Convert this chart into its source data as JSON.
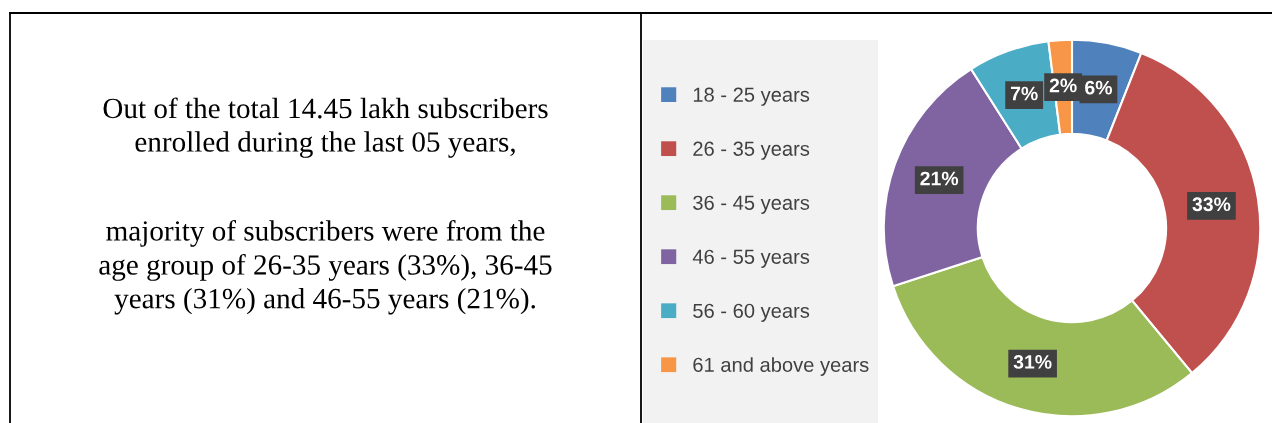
{
  "chart_data": [
    {
      "type": "other",
      "annotations": [
        "Out of the total 14.45 lakh subscribers\nenrolled during the last 05 years,",
        "majority of subscribers were from the\nage group of 26-35 years (33%), 36-45\nyears (31%) and 46-55 years (21%)."
      ]
    },
    {
      "type": "donut",
      "categories": [
        "18 - 25 years",
        "26 - 35 years",
        "36 - 45 years",
        "46 - 55 years",
        "56 - 60 years",
        "61 and above years"
      ],
      "values": [
        6,
        33,
        31,
        21,
        7,
        2
      ],
      "colors": [
        "#4f81bd",
        "#c0504d",
        "#9bbb59",
        "#8064a2",
        "#4bacc6",
        "#f79646"
      ],
      "value_labels": [
        "6%",
        "33%",
        "31%",
        "21%",
        "7%",
        "2%"
      ],
      "legend": "left"
    }
  ]
}
